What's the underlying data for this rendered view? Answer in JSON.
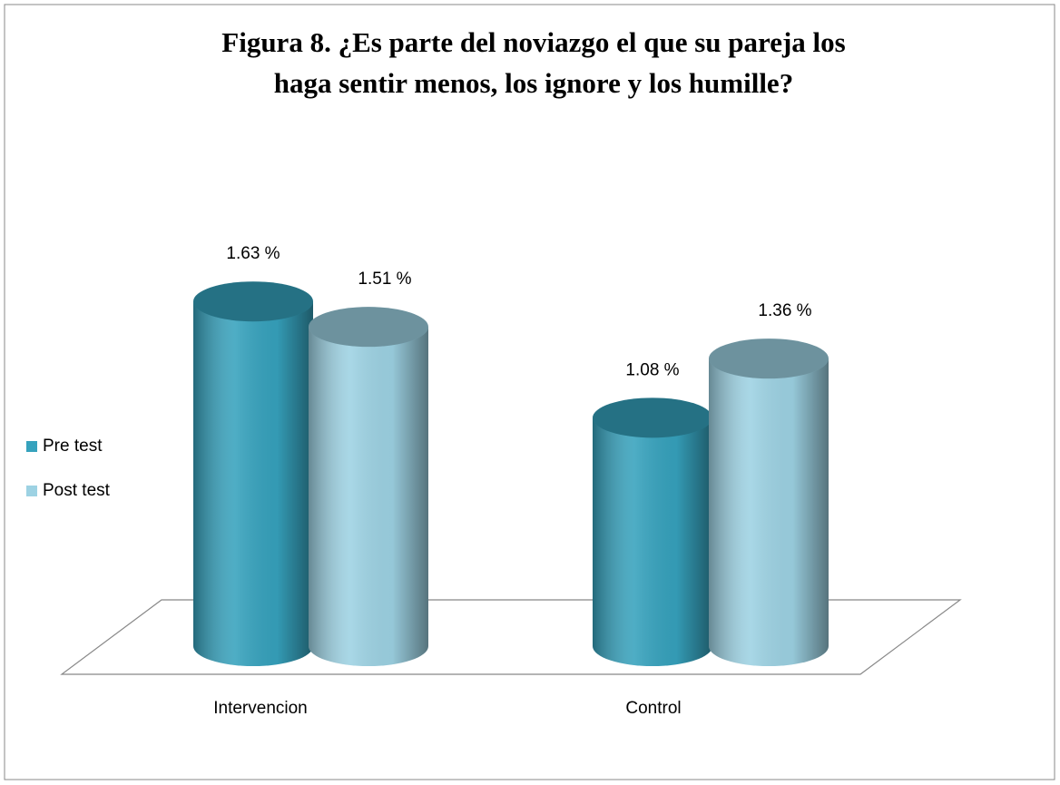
{
  "chart_data": {
    "type": "cylinder-bar",
    "title": "Figura 8.  ¿Es parte del noviazgo el que su pareja los haga sentir menos, los ignore y los humille?",
    "categories": [
      "Intervencion",
      "Control"
    ],
    "series": [
      {
        "name": "Pre test",
        "color": "#36a2bd",
        "values": [
          1.63,
          1.08
        ],
        "value_labels": [
          "1.63 %",
          "1.08 %"
        ]
      },
      {
        "name": "Post test",
        "color": "#9dd2e3",
        "values": [
          1.51,
          1.36
        ],
        "value_labels": [
          "1.51 %",
          "1.36 %"
        ]
      }
    ],
    "legend": "left"
  }
}
